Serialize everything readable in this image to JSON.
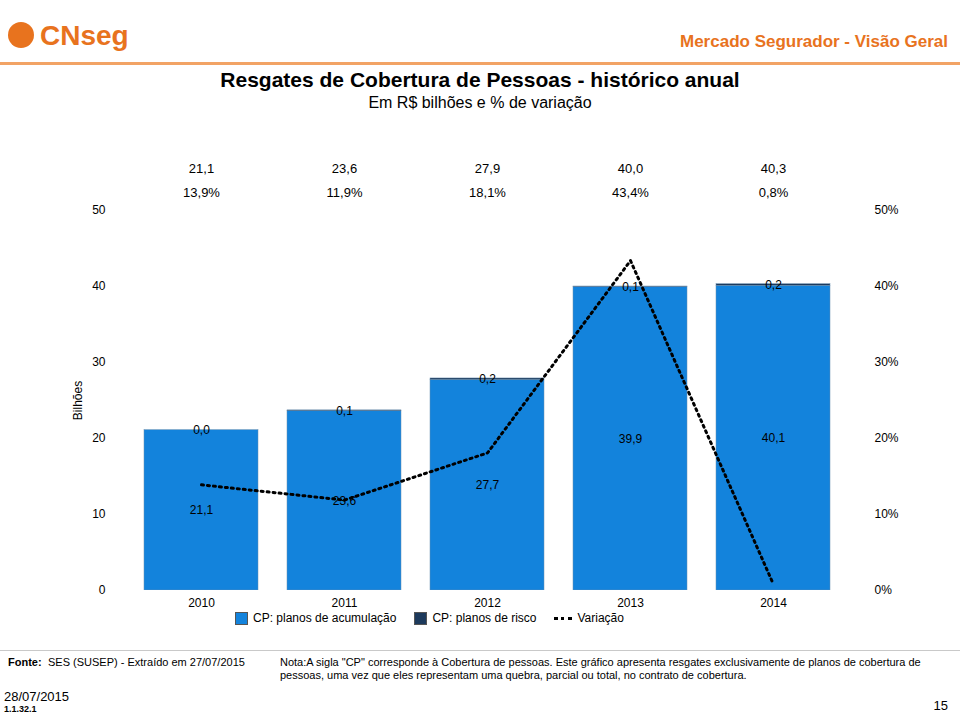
{
  "page": {
    "logo": "CNseg",
    "header": "Mercado Segurador - Visão Geral",
    "source_label": "Fonte:",
    "source": "SES (SUSEP) - Extraído em 27/07/2015",
    "note": "Nota:A sigla \"CP\" corresponde à Cobertura de pessoas. Este gráfico apresenta resgates exclusivamente de planos de cobertura de pessoas, uma vez que eles representam uma quebra, parcial ou total, no contrato de cobertura.",
    "date": "28/07/2015",
    "code": "1.1.32.1",
    "page_number": "15"
  },
  "chart_data": {
    "type": "bar",
    "stacked": true,
    "title": "Resgates de Cobertura de Pessoas - histórico anual",
    "subtitle": "Em R$ bilhões e % de variação",
    "y_label": "Bilhões",
    "categories": [
      "2010",
      "2011",
      "2012",
      "2013",
      "2014"
    ],
    "series": [
      {
        "name": "CP: planos de acumulação",
        "color": "#1383dc",
        "values": [
          21.1,
          23.6,
          27.7,
          39.9,
          40.1
        ],
        "value_labels": [
          "21,1",
          "23,6",
          "27,7",
          "39,9",
          "40,1"
        ]
      },
      {
        "name": "CP: planos de risco",
        "color": "#1d3a5c",
        "values": [
          0.0,
          0.1,
          0.2,
          0.1,
          0.2
        ],
        "value_labels": [
          "0,0",
          "0,1",
          "0,2",
          "0,1",
          "0,2"
        ]
      },
      {
        "name": "Variação",
        "type": "line",
        "axis": "y2",
        "color": "#000000",
        "line_style": "dotted",
        "marker": "none",
        "values": [
          13.9,
          11.9,
          18.1,
          43.4,
          0.8
        ],
        "value_labels": [
          "13,9%",
          "11,9%",
          "18,1%",
          "43,4%",
          "0,8%"
        ]
      }
    ],
    "totals": [
      21.1,
      23.6,
      27.9,
      40.0,
      40.3
    ],
    "total_labels": [
      "21,1",
      "23,6",
      "27,9",
      "40,0",
      "40,3"
    ],
    "ylim": [
      0,
      50
    ],
    "yticks": [
      0,
      10,
      20,
      30,
      40,
      50
    ],
    "y2lim": [
      0,
      50
    ],
    "y2ticks": [
      {
        "value": 0,
        "label": "0%"
      },
      {
        "value": 10,
        "label": "10%"
      },
      {
        "value": 20,
        "label": "20%"
      },
      {
        "value": 30,
        "label": "30%"
      },
      {
        "value": 40,
        "label": "40%"
      },
      {
        "value": 50,
        "label": "50%"
      }
    ],
    "grid": false,
    "legend": "bottom",
    "data_labels": true
  }
}
